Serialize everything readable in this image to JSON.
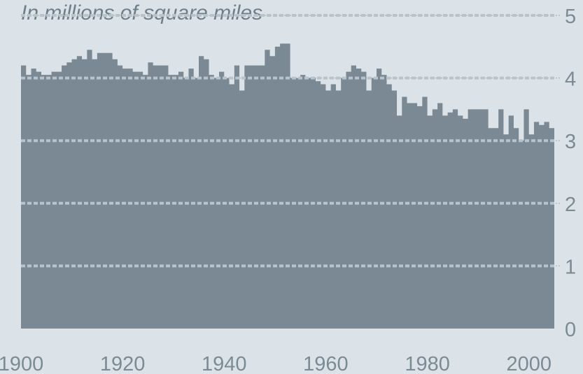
{
  "chart_data": {
    "type": "area",
    "title": "",
    "subtitle": "In millions of square miles",
    "xlabel": "",
    "ylabel": "",
    "xlim": [
      1900,
      2005
    ],
    "ylim": [
      0,
      5
    ],
    "x_ticks": [
      {
        "value": 1900,
        "label": "1900"
      },
      {
        "value": 1920,
        "label": "1920"
      },
      {
        "value": 1940,
        "label": "1940"
      },
      {
        "value": 1960,
        "label": "1960"
      },
      {
        "value": 1980,
        "label": "1980"
      },
      {
        "value": 2000,
        "label": "2000"
      }
    ],
    "y_ticks": [
      {
        "value": 0,
        "label": "0"
      },
      {
        "value": 1,
        "label": "1"
      },
      {
        "value": 2,
        "label": "2"
      },
      {
        "value": 3,
        "label": "3"
      },
      {
        "value": 4,
        "label": "4"
      },
      {
        "value": 5,
        "label": "5"
      }
    ],
    "grid": true,
    "colors": {
      "background": "#dbe3e8",
      "fill": "#7a8994",
      "gridline_over_fill": "#b8c3cb",
      "gridline_top": "#b3bec6",
      "text": "#7b8b95"
    },
    "x": [
      1900,
      1901,
      1902,
      1903,
      1904,
      1905,
      1906,
      1907,
      1908,
      1909,
      1910,
      1911,
      1912,
      1913,
      1914,
      1915,
      1916,
      1917,
      1918,
      1919,
      1920,
      1921,
      1922,
      1923,
      1924,
      1925,
      1926,
      1927,
      1928,
      1929,
      1930,
      1931,
      1932,
      1933,
      1934,
      1935,
      1936,
      1937,
      1938,
      1939,
      1940,
      1941,
      1942,
      1943,
      1944,
      1945,
      1946,
      1947,
      1948,
      1949,
      1950,
      1951,
      1952,
      1953,
      1954,
      1955,
      1956,
      1957,
      1958,
      1959,
      1960,
      1961,
      1962,
      1963,
      1964,
      1965,
      1966,
      1967,
      1968,
      1969,
      1970,
      1971,
      1972,
      1973,
      1974,
      1975,
      1976,
      1977,
      1978,
      1979,
      1980,
      1981,
      1982,
      1983,
      1984,
      1985,
      1986,
      1987,
      1988,
      1989,
      1990,
      1991,
      1992,
      1993,
      1994,
      1995,
      1996,
      1997,
      1998,
      1999,
      2000,
      2001,
      2002,
      2003,
      2004,
      2005
    ],
    "values": [
      4.2,
      4.05,
      4.15,
      4.1,
      4.05,
      4.05,
      4.1,
      4.1,
      4.2,
      4.25,
      4.3,
      4.35,
      4.3,
      4.45,
      4.3,
      4.4,
      4.4,
      4.4,
      4.3,
      4.2,
      4.15,
      4.15,
      4.1,
      4.1,
      4.05,
      4.25,
      4.2,
      4.2,
      4.2,
      4.05,
      4.05,
      4.1,
      4.0,
      4.15,
      4.0,
      4.35,
      4.3,
      4.05,
      4.0,
      4.1,
      4.0,
      3.9,
      4.2,
      3.8,
      4.2,
      4.2,
      4.2,
      4.2,
      4.45,
      4.35,
      4.5,
      4.55,
      4.55,
      4.0,
      4.0,
      4.05,
      4.0,
      4.0,
      3.95,
      3.9,
      3.8,
      3.9,
      3.8,
      4.0,
      4.1,
      4.2,
      4.15,
      4.1,
      3.8,
      4.0,
      4.15,
      4.05,
      3.9,
      3.8,
      3.4,
      3.7,
      3.6,
      3.6,
      3.55,
      3.7,
      3.4,
      3.5,
      3.6,
      3.4,
      3.45,
      3.5,
      3.4,
      3.35,
      3.5,
      3.5,
      3.5,
      3.5,
      3.2,
      3.2,
      3.5,
      3.1,
      3.4,
      3.2,
      3.0,
      3.5,
      3.1,
      3.3,
      3.25,
      3.3,
      3.2,
      3.2
    ]
  }
}
